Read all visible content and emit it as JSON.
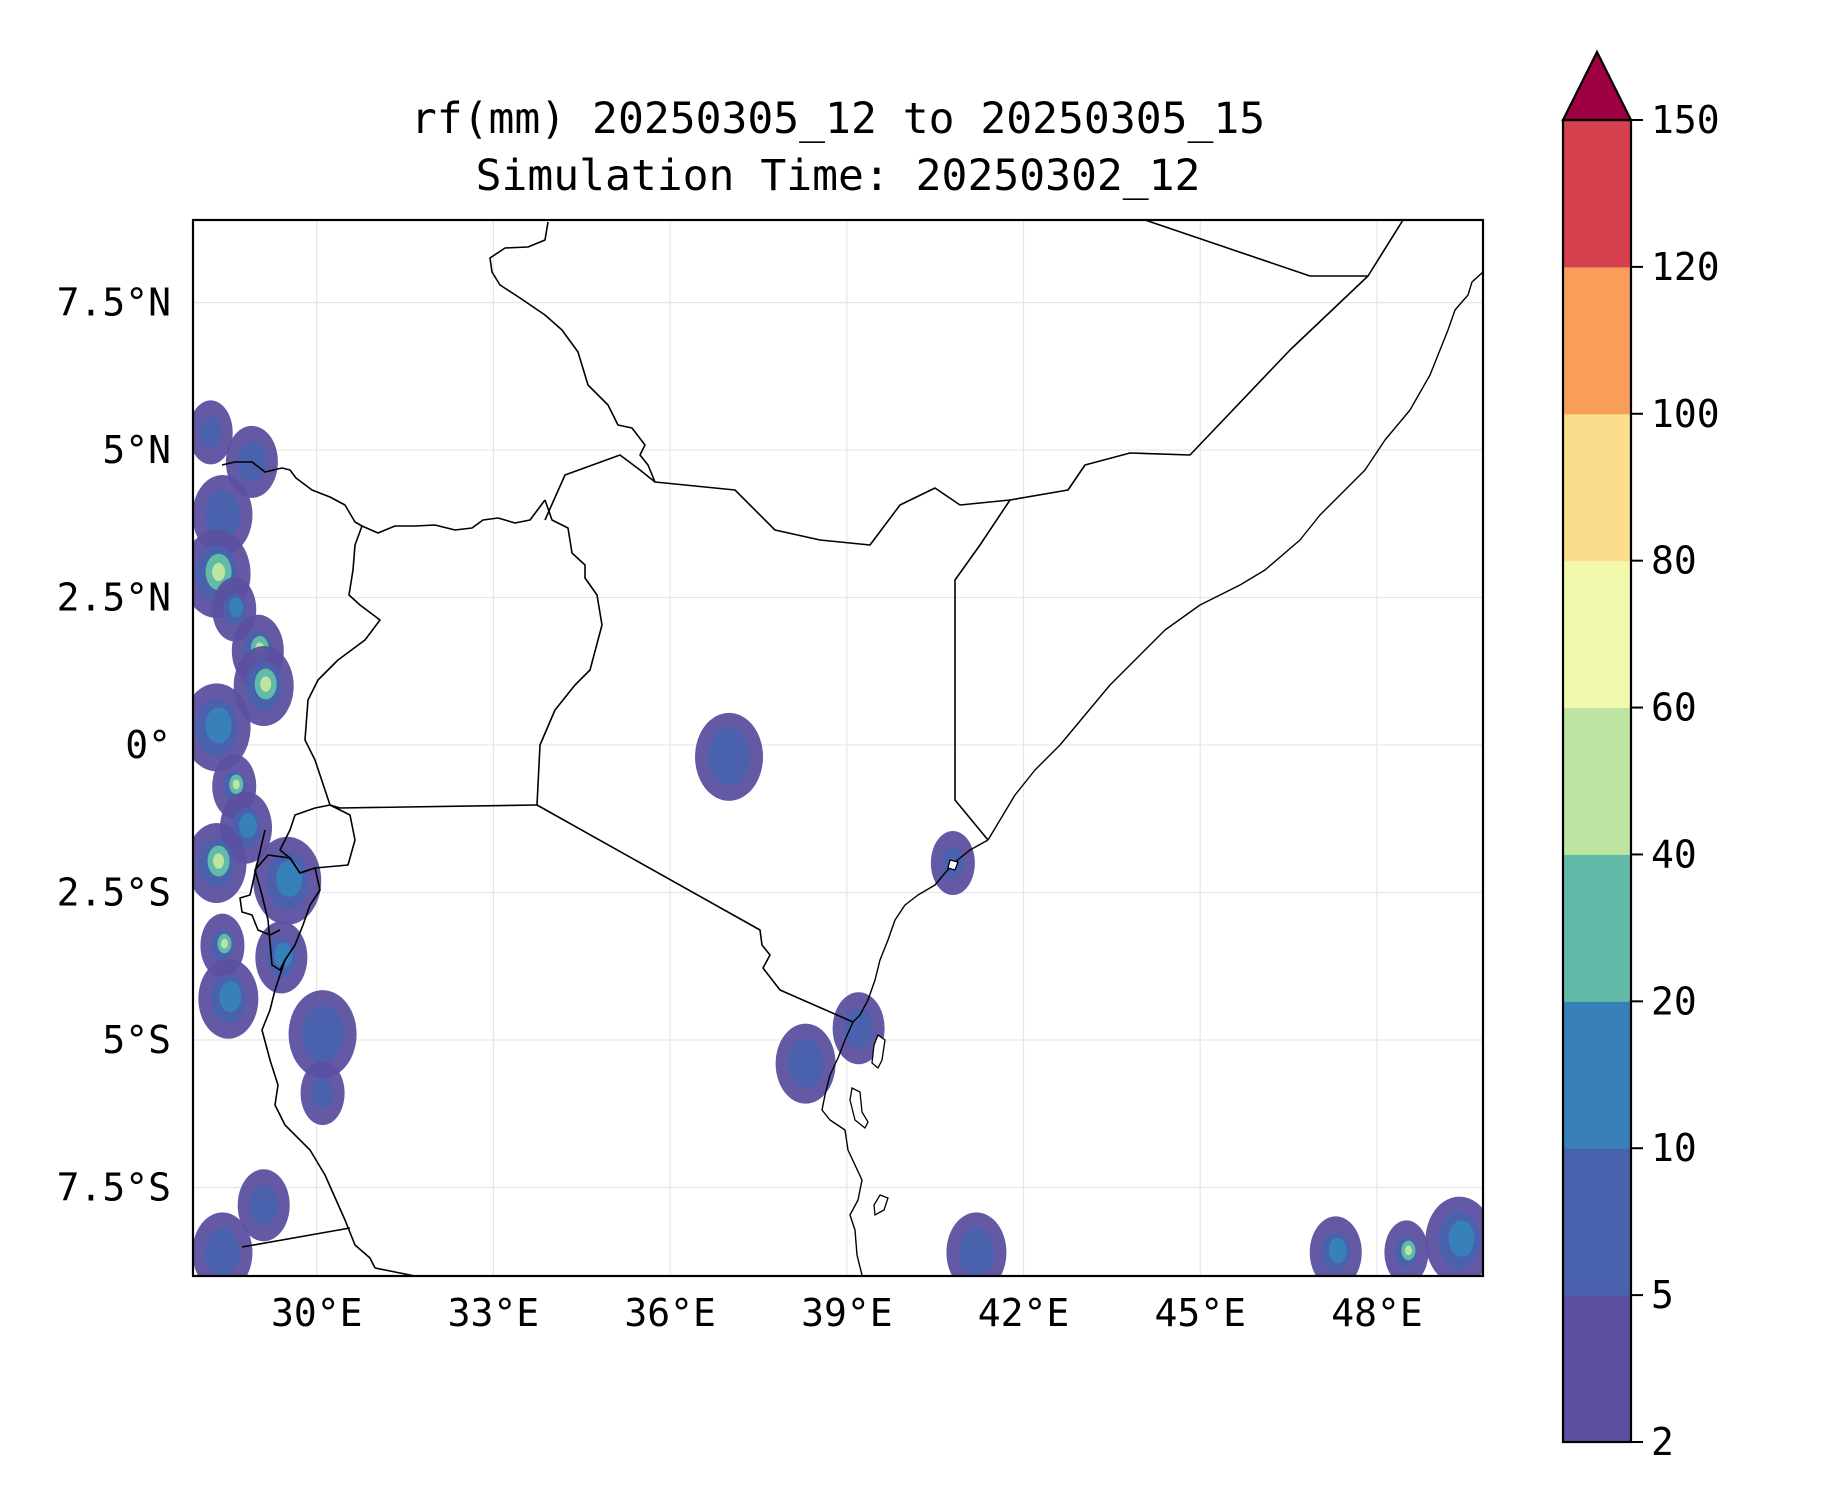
{
  "title": {
    "line1": "rf(mm) 20250305_12 to 20250305_15",
    "line2": "Simulation Time: 20250302_12"
  },
  "map": {
    "lon_range": [
      27.9,
      49.8
    ],
    "lat_range": [
      -9.0,
      8.9
    ],
    "xticks": [
      {
        "value": 30,
        "label": "30°E"
      },
      {
        "value": 33,
        "label": "33°E"
      },
      {
        "value": 36,
        "label": "36°E"
      },
      {
        "value": 39,
        "label": "39°E"
      },
      {
        "value": 42,
        "label": "42°E"
      },
      {
        "value": 45,
        "label": "45°E"
      },
      {
        "value": 48,
        "label": "48°E"
      }
    ],
    "yticks": [
      {
        "value": 7.5,
        "label": "7.5°N"
      },
      {
        "value": 5,
        "label": "5°N"
      },
      {
        "value": 2.5,
        "label": "2.5°N"
      },
      {
        "value": 0,
        "label": "0°"
      },
      {
        "value": -2.5,
        "label": "2.5°S"
      },
      {
        "value": -5,
        "label": "5°S"
      },
      {
        "value": -7.5,
        "label": "7.5°S"
      }
    ],
    "gridlines": true,
    "coastlines": true,
    "country_borders": true
  },
  "colorbar": {
    "levels": [
      2,
      5,
      10,
      20,
      40,
      60,
      80,
      100,
      120,
      150
    ],
    "labels": [
      "2",
      "5",
      "10",
      "20",
      "40",
      "60",
      "80",
      "100",
      "120",
      "150"
    ],
    "colors": [
      "#5b50a0",
      "#4a62ad",
      "#3880b9",
      "#62bba8",
      "#bde4a1",
      "#f2f9ae",
      "#fbde8c",
      "#f99d5a",
      "#d63f4d",
      "#9e0142"
    ],
    "extend": "max"
  },
  "chart_data": {
    "type": "heatmap",
    "title": "rf(mm) 20250305_12 to 20250305_15",
    "subtitle": "Simulation Time: 20250302_12",
    "variable_unit": "mm",
    "x_range": [
      27.9,
      49.8
    ],
    "y_range": [
      -9.0,
      8.9
    ],
    "rain_cells": [
      {
        "lon": 28.2,
        "lat": 5.3,
        "level": 5
      },
      {
        "lon": 28.9,
        "lat": 4.8,
        "level": 5
      },
      {
        "lon": 28.4,
        "lat": 3.9,
        "level": 5
      },
      {
        "lon": 28.3,
        "lat": 2.9,
        "level": 20
      },
      {
        "lon": 28.6,
        "lat": 2.3,
        "level": 10
      },
      {
        "lon": 29.0,
        "lat": 1.6,
        "level": 20
      },
      {
        "lon": 29.1,
        "lat": 1.0,
        "level": 20
      },
      {
        "lon": 28.3,
        "lat": 0.3,
        "level": 10
      },
      {
        "lon": 28.6,
        "lat": -0.7,
        "level": 20
      },
      {
        "lon": 28.8,
        "lat": -1.4,
        "level": 10
      },
      {
        "lon": 28.3,
        "lat": -2.0,
        "level": 20
      },
      {
        "lon": 29.5,
        "lat": -2.3,
        "level": 10
      },
      {
        "lon": 28.4,
        "lat": -3.4,
        "level": 20
      },
      {
        "lon": 29.4,
        "lat": -3.6,
        "level": 10
      },
      {
        "lon": 28.5,
        "lat": -4.3,
        "level": 10
      },
      {
        "lon": 30.1,
        "lat": -4.9,
        "level": 5
      },
      {
        "lon": 30.1,
        "lat": -5.9,
        "level": 5
      },
      {
        "lon": 29.1,
        "lat": -7.8,
        "level": 5
      },
      {
        "lon": 28.4,
        "lat": -8.6,
        "level": 5
      },
      {
        "lon": 37.0,
        "lat": -0.2,
        "level": 5
      },
      {
        "lon": 40.8,
        "lat": -2.0,
        "level": 5
      },
      {
        "lon": 39.2,
        "lat": -4.8,
        "level": 5
      },
      {
        "lon": 38.3,
        "lat": -5.4,
        "level": 5
      },
      {
        "lon": 49.4,
        "lat": -8.4,
        "level": 10
      },
      {
        "lon": 48.5,
        "lat": -8.6,
        "level": 20
      },
      {
        "lon": 47.3,
        "lat": -8.6,
        "level": 10
      },
      {
        "lon": 41.2,
        "lat": -8.6,
        "level": 5
      }
    ]
  }
}
